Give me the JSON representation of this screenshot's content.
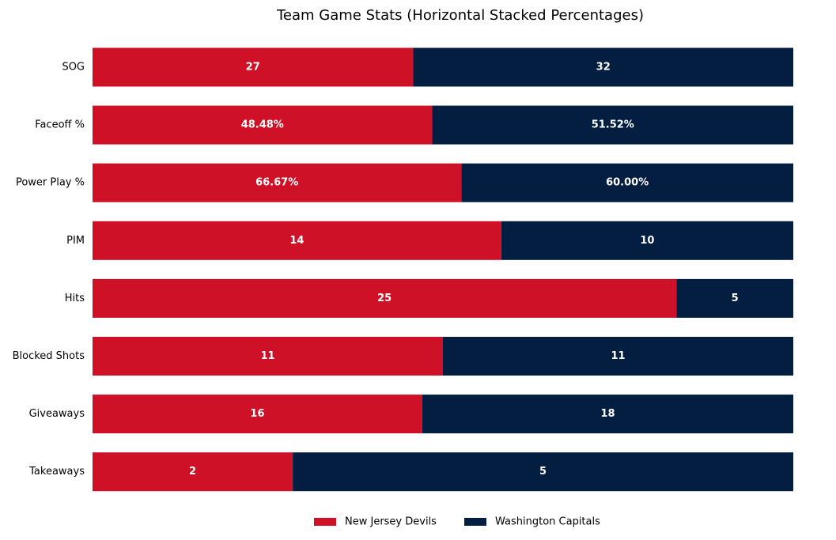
{
  "chart_data": {
    "type": "bar",
    "orientation": "horizontal",
    "stacked": "percent",
    "title": "Team Game Stats (Horizontal Stacked Percentages)",
    "xlabel": "",
    "ylabel": "",
    "grid": false,
    "legend_position": "bottom-center",
    "categories": [
      "SOG",
      "Faceoff %",
      "Power Play %",
      "PIM",
      "Hits",
      "Blocked Shots",
      "Giveaways",
      "Takeaways"
    ],
    "series": [
      {
        "name": "New Jersey Devils",
        "color": "#ce1126",
        "values": [
          27,
          48.48,
          66.67,
          14,
          25,
          11,
          16,
          2
        ],
        "labels": [
          "27",
          "48.48%",
          "66.67%",
          "14",
          "25",
          "11",
          "16",
          "2"
        ]
      },
      {
        "name": "Washington Capitals",
        "color": "#041e42",
        "values": [
          32,
          51.52,
          60.0,
          10,
          5,
          11,
          18,
          5
        ],
        "labels": [
          "32",
          "51.52%",
          "60.00%",
          "10",
          "5",
          "11",
          "18",
          "5"
        ]
      }
    ]
  }
}
